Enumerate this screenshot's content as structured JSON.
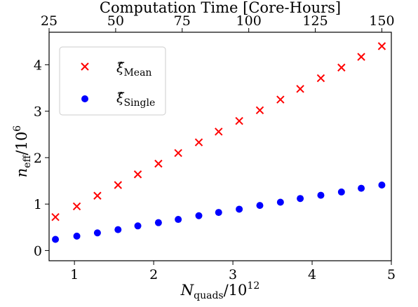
{
  "chart_data": {
    "type": "scatter",
    "xlabel": {
      "main": "N",
      "sub": "quads",
      "div": "/10",
      "sup": "12"
    },
    "ylabel": {
      "main": "n",
      "sub": "eff",
      "div": "/10",
      "sup": "6"
    },
    "top_xlabel": "Computation Time [Core-Hours]",
    "xlim": [
      0.68,
      5.0
    ],
    "ylim": [
      -0.22,
      4.7
    ],
    "xticks": [
      "1",
      "2",
      "3",
      "4",
      "5"
    ],
    "xtick_values": [
      1,
      2,
      3,
      4,
      5
    ],
    "yticks": [
      "0",
      "1",
      "2",
      "3",
      "4"
    ],
    "ytick_values": [
      0,
      1,
      2,
      3,
      4
    ],
    "top_xticks": [
      "25",
      "50",
      "75",
      "100",
      "125",
      "150"
    ],
    "top_xtick_values": [
      25,
      50,
      75,
      100,
      125,
      150
    ],
    "top_axis_map": {
      "core_hours": [
        25,
        150
      ],
      "n_quads": [
        0.68,
        4.88
      ]
    },
    "legend_position": "upper-left",
    "grid": false,
    "series": [
      {
        "name": "Mean",
        "legend_main": "ξ̂",
        "legend_sub": "Mean",
        "marker": "x",
        "color": "#ff0000",
        "x": [
          0.76,
          1.03,
          1.29,
          1.55,
          1.8,
          2.06,
          2.31,
          2.57,
          2.82,
          3.08,
          3.34,
          3.6,
          3.85,
          4.11,
          4.37,
          4.62,
          4.88
        ],
        "y": [
          0.72,
          0.95,
          1.18,
          1.41,
          1.64,
          1.87,
          2.1,
          2.33,
          2.56,
          2.79,
          3.02,
          3.25,
          3.48,
          3.71,
          3.94,
          4.17,
          4.4
        ]
      },
      {
        "name": "Single",
        "legend_main": "ξ̂",
        "legend_sub": "Single",
        "marker": "o",
        "color": "#0000ff",
        "x": [
          0.76,
          1.03,
          1.29,
          1.55,
          1.8,
          2.06,
          2.31,
          2.57,
          2.82,
          3.08,
          3.34,
          3.6,
          3.85,
          4.11,
          4.37,
          4.62,
          4.88
        ],
        "y": [
          0.24,
          0.31,
          0.38,
          0.45,
          0.53,
          0.6,
          0.67,
          0.75,
          0.82,
          0.89,
          0.97,
          1.04,
          1.12,
          1.19,
          1.26,
          1.34,
          1.41
        ]
      }
    ]
  }
}
